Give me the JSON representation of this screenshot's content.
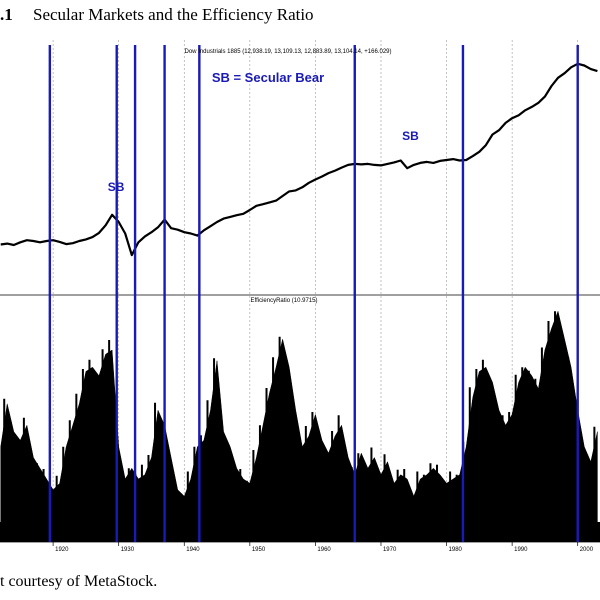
{
  "figure": {
    "number": ".1",
    "title": "Secular Markets and the Efficiency Ratio",
    "credit": "t courtesy of MetaStock."
  },
  "chart_data": [
    {
      "type": "line",
      "title": "Dow Industrials 1885 (12,938.19, 13,109.13, 12,883.89, 13,104.14, +166.029)",
      "y_scale": "log",
      "legend_text": "SB = Secular Bear",
      "annotations": [
        {
          "text": "SB",
          "x": 1929.6,
          "y": 200
        },
        {
          "text": "SB",
          "x": 1974.5,
          "y": 800
        }
      ],
      "line_color": "#000000",
      "x": [
        1912,
        1913,
        1914,
        1915,
        1916,
        1917,
        1918,
        1919,
        1920,
        1921,
        1922,
        1923,
        1924,
        1925,
        1926,
        1927,
        1928,
        1929,
        1930,
        1931,
        1932,
        1933,
        1934,
        1935,
        1936,
        1937,
        1938,
        1939,
        1940,
        1941,
        1942,
        1943,
        1944,
        1945,
        1946,
        1947,
        1948,
        1949,
        1950,
        1951,
        1952,
        1953,
        1954,
        1955,
        1956,
        1957,
        1958,
        1959,
        1960,
        1961,
        1962,
        1963,
        1964,
        1965,
        1966,
        1967,
        1968,
        1969,
        1970,
        1971,
        1972,
        1973,
        1974,
        1975,
        1976,
        1977,
        1978,
        1979,
        1980,
        1981,
        1982,
        1983,
        1984,
        1985,
        1986,
        1987,
        1988,
        1989,
        1990,
        1991,
        1992,
        1993,
        1994,
        1995,
        1996,
        1997,
        1998,
        1999,
        2000,
        2001,
        2002,
        2003
      ],
      "y": [
        80,
        82,
        79,
        85,
        90,
        88,
        85,
        88,
        90,
        86,
        81,
        83,
        88,
        92,
        98,
        110,
        135,
        180,
        148,
        108,
        60,
        85,
        100,
        112,
        128,
        158,
        125,
        120,
        112,
        108,
        102,
        118,
        132,
        148,
        162,
        170,
        178,
        185,
        205,
        230,
        240,
        252,
        265,
        300,
        340,
        350,
        380,
        430,
        470,
        510,
        560,
        600,
        650,
        700,
        720,
        710,
        720,
        700,
        690,
        720,
        750,
        790,
        640,
        700,
        740,
        760,
        740,
        780,
        800,
        820,
        790,
        800,
        890,
        1000,
        1200,
        1600,
        1800,
        2200,
        2500,
        2700,
        3100,
        3400,
        3800,
        4500,
        6000,
        7500,
        8500,
        10000,
        11000,
        10500,
        9500,
        9000
      ]
    },
    {
      "type": "area",
      "title": "EfficiencyRatio (10.9715)",
      "fill_color": "#000000",
      "x": [
        1912,
        1913,
        1914,
        1915,
        1916,
        1917,
        1918,
        1919,
        1920,
        1921,
        1922,
        1923,
        1924,
        1925,
        1926,
        1927,
        1928,
        1929,
        1930,
        1931,
        1932,
        1933,
        1934,
        1935,
        1936,
        1937,
        1938,
        1939,
        1940,
        1941,
        1942,
        1943,
        1944,
        1945,
        1946,
        1947,
        1948,
        1949,
        1950,
        1951,
        1952,
        1953,
        1954,
        1955,
        1956,
        1957,
        1958,
        1959,
        1960,
        1961,
        1962,
        1963,
        1964,
        1965,
        1966,
        1967,
        1968,
        1969,
        1970,
        1971,
        1972,
        1973,
        1974,
        1975,
        1976,
        1977,
        1978,
        1979,
        1980,
        1981,
        1982,
        1983,
        1984,
        1985,
        1986,
        1987,
        1988,
        1989,
        1990,
        1991,
        1992,
        1993,
        1994,
        1995,
        1996,
        1997,
        1998,
        1999,
        2000,
        2001,
        2002,
        2003
      ],
      "y": [
        0.35,
        0.55,
        0.42,
        0.38,
        0.45,
        0.3,
        0.25,
        0.2,
        0.15,
        0.18,
        0.35,
        0.45,
        0.55,
        0.7,
        0.72,
        0.68,
        0.78,
        0.8,
        0.35,
        0.2,
        0.25,
        0.2,
        0.22,
        0.3,
        0.52,
        0.45,
        0.3,
        0.15,
        0.12,
        0.2,
        0.35,
        0.38,
        0.52,
        0.75,
        0.42,
        0.35,
        0.25,
        0.2,
        0.18,
        0.3,
        0.45,
        0.6,
        0.72,
        0.85,
        0.72,
        0.52,
        0.35,
        0.4,
        0.5,
        0.38,
        0.32,
        0.4,
        0.45,
        0.3,
        0.22,
        0.32,
        0.25,
        0.3,
        0.22,
        0.28,
        0.18,
        0.22,
        0.2,
        0.12,
        0.2,
        0.22,
        0.25,
        0.22,
        0.18,
        0.2,
        0.22,
        0.35,
        0.58,
        0.7,
        0.72,
        0.65,
        0.52,
        0.45,
        0.5,
        0.65,
        0.72,
        0.68,
        0.62,
        0.8,
        0.9,
        0.98,
        0.85,
        0.72,
        0.52,
        0.35,
        0.28,
        0.42
      ]
    }
  ],
  "x_ticks": [
    "1920",
    "1930",
    "1940",
    "1950",
    "1960",
    "1970",
    "1980",
    "1990",
    "2000"
  ],
  "vertical_markers": [
    1919.5,
    1929.7,
    1932.5,
    1937.0,
    1942.3,
    1966.0,
    1982.5,
    2000.0
  ],
  "marker_color": "#1a1ab5",
  "label_color": "#1a1ab5",
  "grid": "vertical dashed"
}
